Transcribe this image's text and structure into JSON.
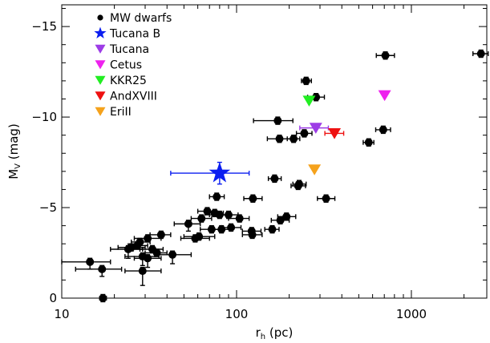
{
  "chart_data": {
    "type": "scatter",
    "x_scale": "log",
    "y_inverted": true,
    "xlim": [
      10,
      2700
    ],
    "ylim": [
      0,
      -16.2
    ],
    "x_ticks": [
      10,
      100,
      1000
    ],
    "x_tick_labels": [
      "10",
      "100",
      "1000"
    ],
    "y_ticks": [
      0,
      -5,
      -10,
      -15
    ],
    "y_tick_labels": [
      "0",
      "−5",
      "−10",
      "−15"
    ],
    "xlabel": {
      "main": "r",
      "sub": "h",
      "rest": " (pc)"
    },
    "ylabel": {
      "main": "M",
      "sub": "V",
      "rest": " (mag)"
    },
    "legend_position": "top-left",
    "series": [
      {
        "name": "MW dwarfs",
        "marker": "circle",
        "color": "#000000",
        "points": [
          {
            "x": 14.5,
            "y": -2.0,
            "xlo": 10,
            "xhi": 19,
            "ylo": 0.4
          },
          {
            "x": 17,
            "y": -1.6,
            "xlo": 12,
            "xhi": 22,
            "ylo": 0.4
          },
          {
            "x": 17.2,
            "y": 0.0,
            "xlo": 16.5,
            "xhi": 18
          },
          {
            "x": 24,
            "y": -2.7,
            "xlo": 19,
            "xhi": 29,
            "ylo": 0.5
          },
          {
            "x": 25,
            "y": -2.8,
            "xlo": 21,
            "xhi": 30
          },
          {
            "x": 27,
            "y": -2.9,
            "xlo": 24,
            "xhi": 31
          },
          {
            "x": 28,
            "y": -3.1,
            "xlo": 25,
            "xhi": 32
          },
          {
            "x": 29,
            "y": -2.3,
            "xlo": 23,
            "xhi": 36,
            "ylo": 0.5
          },
          {
            "x": 29,
            "y": -1.5,
            "xlo": 23,
            "xhi": 37,
            "ylo": 0.8
          },
          {
            "x": 31,
            "y": -3.3,
            "xlo": 26,
            "xhi": 37
          },
          {
            "x": 31,
            "y": -2.2,
            "xlo": 26,
            "xhi": 37,
            "ylo": 0.5
          },
          {
            "x": 33,
            "y": -2.7,
            "xlo": 28,
            "xhi": 38
          },
          {
            "x": 35,
            "y": -2.5,
            "xlo": 30,
            "xhi": 40
          },
          {
            "x": 37,
            "y": -3.5,
            "xlo": 32,
            "xhi": 42
          },
          {
            "x": 43,
            "y": -2.4,
            "xlo": 34,
            "xhi": 55,
            "ylo": 0.5
          },
          {
            "x": 53,
            "y": -4.1,
            "xlo": 44,
            "xhi": 62,
            "ylo": 0.4
          },
          {
            "x": 58,
            "y": -3.3,
            "xlo": 48,
            "xhi": 70
          },
          {
            "x": 61,
            "y": -3.4,
            "xlo": 50,
            "xhi": 75
          },
          {
            "x": 63,
            "y": -4.4,
            "xlo": 55,
            "xhi": 72
          },
          {
            "x": 68,
            "y": -4.8,
            "xlo": 60,
            "xhi": 76
          },
          {
            "x": 72,
            "y": -3.8,
            "xlo": 62,
            "xhi": 83
          },
          {
            "x": 75,
            "y": -4.7,
            "xlo": 66,
            "xhi": 84
          },
          {
            "x": 77,
            "y": -5.6,
            "xlo": 70,
            "xhi": 85
          },
          {
            "x": 80,
            "y": -4.6,
            "xlo": 70,
            "xhi": 90
          },
          {
            "x": 82,
            "y": -3.8,
            "xlo": 72,
            "xhi": 93
          },
          {
            "x": 90,
            "y": -4.6,
            "xlo": 78,
            "xhi": 102
          },
          {
            "x": 93,
            "y": -3.9,
            "xlo": 82,
            "xhi": 106
          },
          {
            "x": 104,
            "y": -4.4,
            "xlo": 90,
            "xhi": 118
          },
          {
            "x": 122,
            "y": -3.7,
            "xlo": 108,
            "xhi": 138
          },
          {
            "x": 123,
            "y": -3.5,
            "xlo": 108,
            "xhi": 140
          },
          {
            "x": 124,
            "y": -5.5,
            "xlo": 110,
            "xhi": 140
          },
          {
            "x": 160,
            "y": -3.8,
            "xlo": 145,
            "xhi": 175
          },
          {
            "x": 165,
            "y": -6.6,
            "xlo": 152,
            "xhi": 180
          },
          {
            "x": 172,
            "y": -9.8,
            "xlo": 125,
            "xhi": 210
          },
          {
            "x": 176,
            "y": -8.8,
            "xlo": 150,
            "xhi": 205
          },
          {
            "x": 178,
            "y": -4.3,
            "xlo": 158,
            "xhi": 200
          },
          {
            "x": 193,
            "y": -4.5,
            "xlo": 172,
            "xhi": 218
          },
          {
            "x": 212,
            "y": -8.8,
            "xlo": 195,
            "xhi": 230
          },
          {
            "x": 225,
            "y": -6.2,
            "xlo": 205,
            "xhi": 248
          },
          {
            "x": 228,
            "y": -6.3,
            "xlo": 210,
            "xhi": 250
          },
          {
            "x": 244,
            "y": -9.1,
            "xlo": 220,
            "xhi": 270
          },
          {
            "x": 250,
            "y": -12.0,
            "xlo": 235,
            "xhi": 268
          },
          {
            "x": 285,
            "y": -11.1,
            "xlo": 255,
            "xhi": 318
          },
          {
            "x": 325,
            "y": -5.5,
            "xlo": 290,
            "xhi": 365
          },
          {
            "x": 570,
            "y": -8.6,
            "xlo": 530,
            "xhi": 610
          },
          {
            "x": 690,
            "y": -9.3,
            "xlo": 625,
            "xhi": 760
          },
          {
            "x": 710,
            "y": -13.4,
            "xlo": 630,
            "xhi": 800
          },
          {
            "x": 2500,
            "y": -13.5,
            "xlo": 2250,
            "xhi": 2750
          }
        ]
      },
      {
        "name": "Tucana B",
        "marker": "star",
        "color": "#0b1ef0",
        "points": [
          {
            "x": 80,
            "y": -6.9,
            "xlo": 42,
            "xhi": 118,
            "ylo": 0.6,
            "yhi": 0.6
          }
        ]
      },
      {
        "name": "Tucana",
        "marker": "triangle-down",
        "color": "#9d3ce6",
        "points": [
          {
            "x": 284,
            "y": -9.4,
            "xlo": 230,
            "xhi": 335
          }
        ]
      },
      {
        "name": "Cetus",
        "marker": "triangle-down",
        "color": "#ee22ee",
        "points": [
          {
            "x": 703,
            "y": -11.2
          }
        ]
      },
      {
        "name": "KKR25",
        "marker": "triangle-down",
        "color": "#22ee22",
        "points": [
          {
            "x": 260,
            "y": -10.9
          }
        ]
      },
      {
        "name": "AndXVIII",
        "marker": "triangle-down",
        "color": "#ee1111",
        "points": [
          {
            "x": 363,
            "y": -9.1,
            "xlo": 320,
            "xhi": 410
          }
        ]
      },
      {
        "name": "EriII",
        "marker": "triangle-down",
        "color": "#f5a21c",
        "points": [
          {
            "x": 279,
            "y": -7.1
          }
        ]
      }
    ]
  }
}
